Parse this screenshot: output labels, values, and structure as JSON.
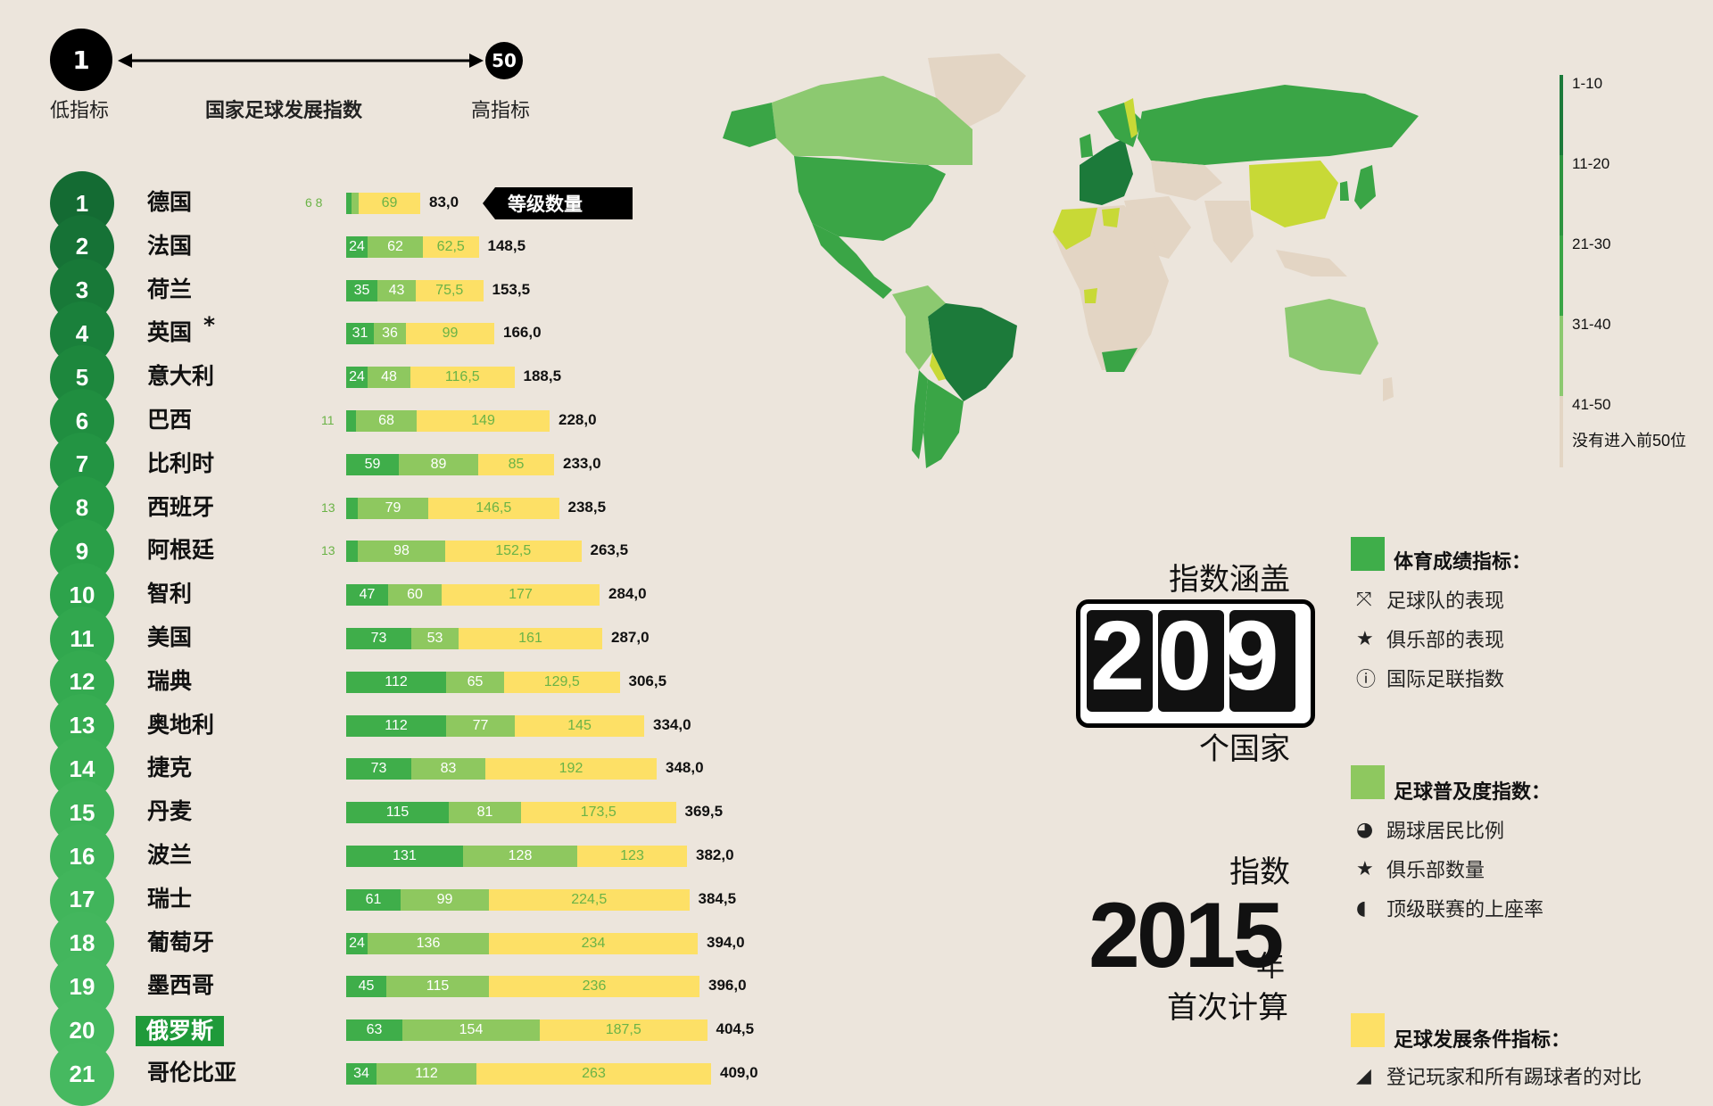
{
  "scale": {
    "left_num": "1",
    "right_num": "50",
    "left_label": "低指标",
    "middle_label": "国家足球发展指数",
    "right_label": "高指标"
  },
  "rank_tag": "等级数量",
  "colors": {
    "seg1": "#3fae4a",
    "seg2": "#8ec85f",
    "seg3": "#fde066",
    "map_dark": "#1c7a3a",
    "map_mid": "#3aa546",
    "map_light": "#8cc970",
    "map_yellow": "#c8d936",
    "map_none": "#e3d5c4"
  },
  "map_legend": {
    "items": [
      "1-10",
      "11-20",
      "21-30",
      "31-40",
      "41-50"
    ],
    "none_label": "没有进入前50位"
  },
  "coverage": {
    "title": "指数涵盖",
    "number": "209",
    "unit": "个国家"
  },
  "first": {
    "title": "指数",
    "year": "2015",
    "year_suffix": "年",
    "subtitle": "首次计算"
  },
  "legend": {
    "sport_title": "体育成绩指标：",
    "sport_items": [
      "足球队的表现",
      "俱乐部的表现",
      "国际足联指数"
    ],
    "popularity_title": "足球普及度指数：",
    "popularity_items": [
      "踢球居民比例",
      "俱乐部数量",
      "顶级联赛的上座率"
    ],
    "conditions_title": "足球发展条件指标：",
    "conditions_item": "登记玩家和所有踢球者的对比"
  },
  "chart_data": {
    "type": "bar",
    "stacked": true,
    "categories": [
      "德国",
      "法国",
      "荷兰",
      "英国",
      "意大利",
      "巴西",
      "比利时",
      "西班牙",
      "阿根廷",
      "智利",
      "美国",
      "瑞典",
      "奥地利",
      "捷克",
      "丹麦",
      "波兰",
      "瑞士",
      "葡萄牙",
      "墨西哥",
      "俄罗斯",
      "哥伦比亚"
    ],
    "ranks": [
      "1",
      "2",
      "3",
      "4",
      "5",
      "6",
      "7",
      "8",
      "9",
      "10",
      "11",
      "12",
      "13",
      "14",
      "15",
      "16",
      "17",
      "18",
      "19",
      "20",
      "21"
    ],
    "series": [
      {
        "values": [
          6,
          24,
          35,
          31,
          24,
          11,
          59,
          13,
          13,
          47,
          73,
          112,
          112,
          73,
          115,
          131,
          61,
          24,
          45,
          63,
          34
        ]
      },
      {
        "values": [
          8,
          62,
          43,
          36,
          48,
          68,
          89,
          79,
          98,
          60,
          53,
          65,
          77,
          83,
          81,
          128,
          99,
          136,
          115,
          154,
          112
        ]
      },
      {
        "values": [
          69,
          62.5,
          75.5,
          99,
          116.5,
          149,
          85,
          146.5,
          152.5,
          177,
          161,
          129.5,
          145,
          192,
          173.5,
          123,
          224.5,
          234,
          236,
          187.5,
          263
        ]
      }
    ],
    "labels1": [
      "6",
      "24",
      "35",
      "31",
      "24",
      "11",
      "59",
      "13",
      "13",
      "47",
      "73",
      "112",
      "112",
      "73",
      "115",
      "131",
      "61",
      "24",
      "45",
      "63",
      "34"
    ],
    "labels2": [
      "8",
      "62",
      "43",
      "36",
      "48",
      "68",
      "89",
      "79",
      "98",
      "60",
      "53",
      "65",
      "77",
      "83",
      "81",
      "128",
      "99",
      "136",
      "115",
      "154",
      "112"
    ],
    "labels3": [
      "69",
      "62,5",
      "75,5",
      "99",
      "116,5",
      "149",
      "85",
      "146,5",
      "152,5",
      "177",
      "161",
      "129,5",
      "145",
      "192",
      "173,5",
      "123",
      "224,5",
      "234",
      "236",
      "187,5",
      "263"
    ],
    "totals": [
      "83,0",
      "148,5",
      "153,5",
      "166,0",
      "188,5",
      "228,0",
      "233,0",
      "238,5",
      "263,5",
      "284,0",
      "287,0",
      "306,5",
      "334,0",
      "348,0",
      "369,5",
      "382,0",
      "384,5",
      "394,0",
      "396,0",
      "404,5",
      "409,0"
    ],
    "asterisk_country": "英国",
    "asterisk": "*",
    "highlight_country": "俄罗斯"
  }
}
